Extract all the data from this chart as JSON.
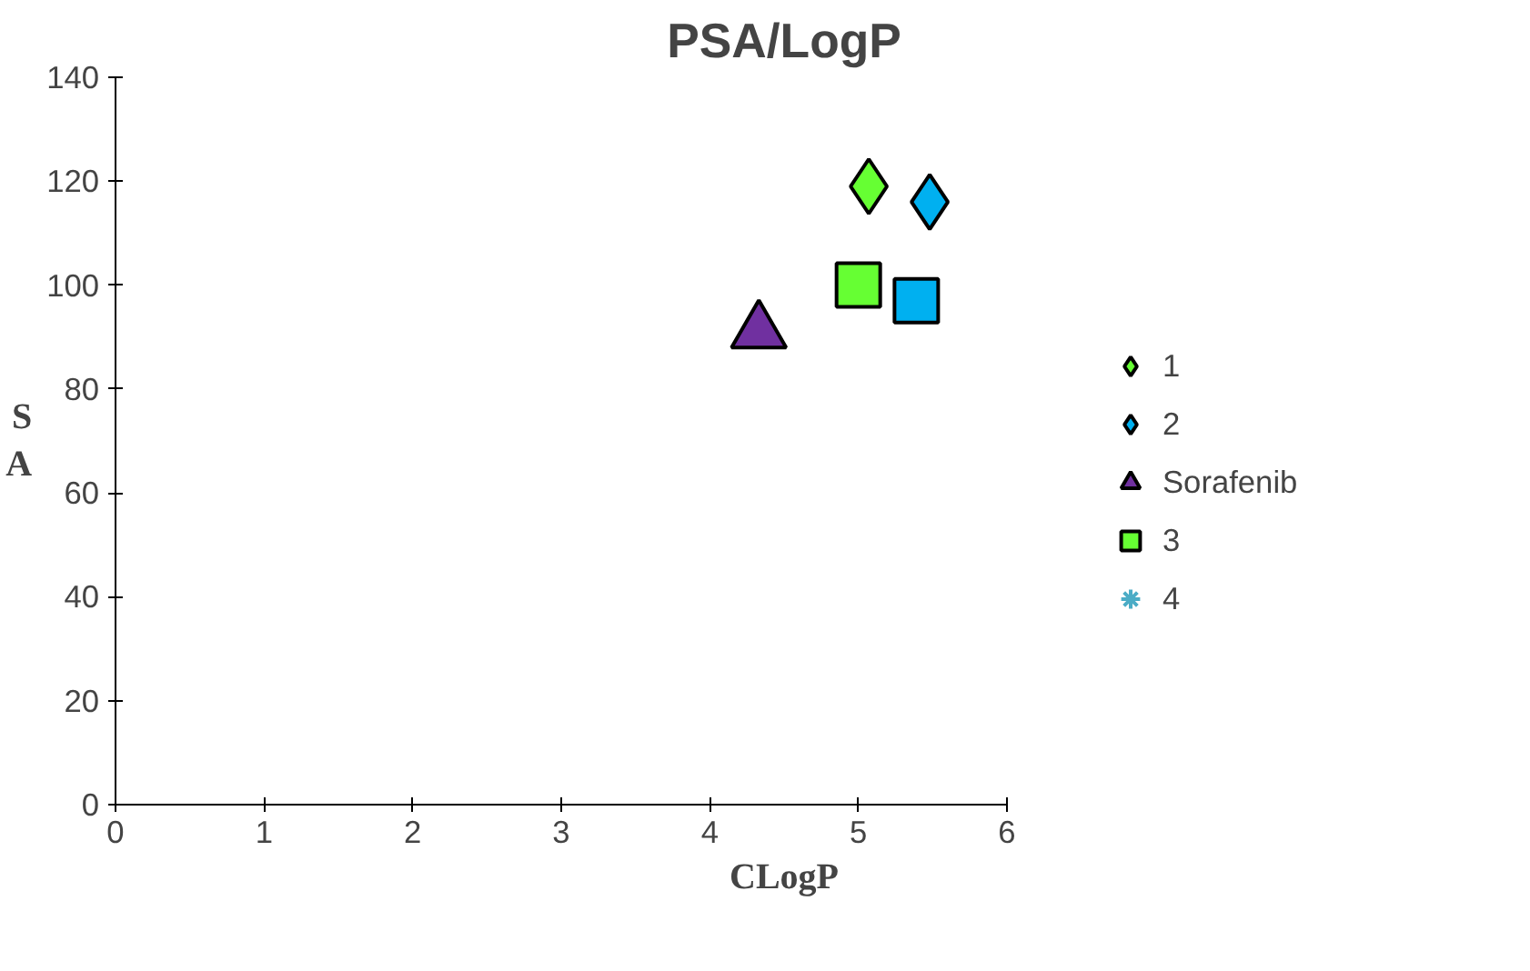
{
  "chart_data": {
    "type": "scatter",
    "title": "PSA/LogP",
    "xlabel": "CLogP",
    "ylabel": "S\nA",
    "series": [
      {
        "name": "1",
        "color": "#66ff33",
        "marker": "diamond",
        "x": [
          5.07
        ],
        "values": [
          119
        ]
      },
      {
        "name": "2",
        "color": "#00b0f0",
        "marker": "diamond",
        "x": [
          5.48
        ],
        "values": [
          116
        ]
      },
      {
        "name": "Sorafenib",
        "color": "#7030a0",
        "marker": "triangle",
        "x": [
          4.33
        ],
        "values": [
          91
        ]
      },
      {
        "name": "3",
        "color": "#66ff33",
        "marker": "square",
        "x": [
          5.0
        ],
        "values": [
          100
        ]
      },
      {
        "name": "4",
        "color": "#4bacc6",
        "marker": "cross"
      },
      {
        "color": "#00b0f0",
        "marker": "square",
        "x": [
          5.39
        ],
        "values": [
          97
        ]
      }
    ],
    "xlim": [
      0,
      6
    ],
    "xticks": [
      0,
      1,
      2,
      3,
      4,
      5,
      6
    ],
    "ylim": [
      0,
      140
    ],
    "yticks": [
      0,
      20,
      40,
      60,
      80,
      100,
      120,
      140
    ],
    "grid": false,
    "legend": "right"
  }
}
